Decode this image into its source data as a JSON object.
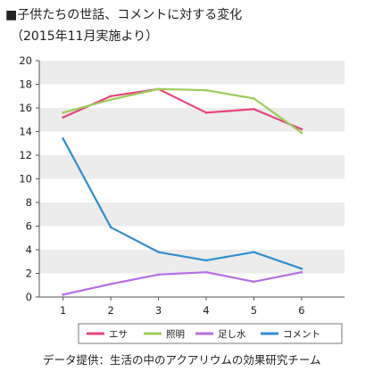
{
  "chart_data": {
    "type": "line",
    "title": "■子供たちの世話、コメントに対する変化",
    "subtitle": "（2015年11月実施より）",
    "xlabel": "",
    "ylabel": "",
    "x": [
      1,
      2,
      3,
      4,
      5,
      6
    ],
    "ylim": [
      0,
      20
    ],
    "yticks": [
      0,
      2,
      4,
      6,
      8,
      10,
      12,
      14,
      16,
      18,
      20
    ],
    "grid": "alternating horizontal bands",
    "legend_position": "bottom",
    "series": [
      {
        "name": "エサ",
        "color": "#e8457a",
        "values": [
          15.2,
          17.0,
          17.6,
          15.6,
          15.9,
          14.2
        ]
      },
      {
        "name": "照明",
        "color": "#9ccc5a",
        "values": [
          15.6,
          16.7,
          17.6,
          17.5,
          16.8,
          13.9
        ]
      },
      {
        "name": "足し水",
        "color": "#b56ee6",
        "values": [
          0.2,
          1.1,
          1.9,
          2.1,
          1.3,
          2.1
        ]
      },
      {
        "name": "コメント",
        "color": "#2f8fd1",
        "values": [
          13.4,
          5.9,
          3.8,
          3.1,
          3.8,
          2.4
        ]
      }
    ],
    "source": "データ提供：生活の中のアクアリウムの効果研究チーム"
  }
}
